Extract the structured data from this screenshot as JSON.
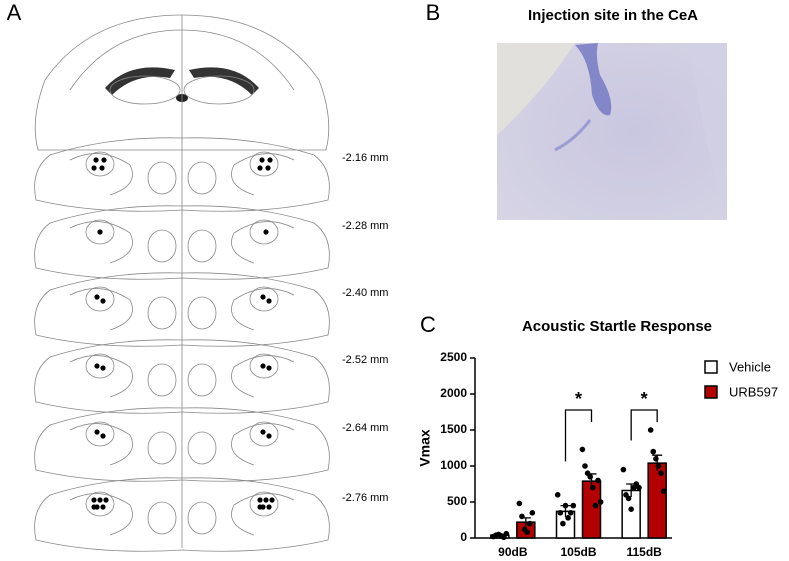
{
  "panel_labels": [
    "A",
    "B",
    "C"
  ],
  "panel_a": {
    "levels": [
      "-2.16 mm",
      "-2.28 mm",
      "-2.40 mm",
      "-2.52 mm",
      "-2.64 mm",
      "-2.76 mm"
    ]
  },
  "panel_b": {
    "title": "Injection site in the CeA"
  },
  "chart_data": {
    "type": "bar",
    "title": "Acoustic Startle Response",
    "y_label": "Vmax",
    "categories": [
      "90dB",
      "105dB",
      "115dB"
    ],
    "series": [
      {
        "name": "Vehicle",
        "color": "#ffffff",
        "values": [
          40,
          370,
          660
        ],
        "errors": [
          10,
          80,
          90
        ],
        "points": [
          [
            20,
            40,
            50,
            30,
            10,
            60
          ],
          [
            600,
            350,
            200,
            450,
            280,
            350,
            450
          ],
          [
            950,
            600,
            550,
            400,
            700,
            750,
            700
          ]
        ]
      },
      {
        "name": "URB597",
        "color": "#b30000",
        "values": [
          220,
          790,
          1040
        ],
        "errors": [
          60,
          100,
          110
        ],
        "points": [
          [
            480,
            300,
            120,
            80,
            200,
            350
          ],
          [
            1230,
            1000,
            900,
            850,
            700,
            450,
            800,
            500
          ],
          [
            1500,
            1200,
            1100,
            1000,
            900,
            650
          ]
        ]
      }
    ],
    "ylim": [
      0,
      2500
    ],
    "yticks": [
      0,
      500,
      1000,
      1500,
      2000,
      2500
    ],
    "annotations": [
      "*",
      "*"
    ],
    "legend": "right"
  }
}
